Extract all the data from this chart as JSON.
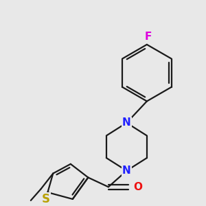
{
  "background_color": "#e8e8e8",
  "bond_color": "#1a1a1a",
  "N_color": "#2020ff",
  "O_color": "#ee1111",
  "S_color": "#b8a000",
  "F_color": "#dd00dd",
  "line_width": 1.6,
  "figsize": [
    3.0,
    3.0
  ],
  "dpi": 100,
  "xlim": [
    0,
    300
  ],
  "ylim": [
    0,
    300
  ]
}
